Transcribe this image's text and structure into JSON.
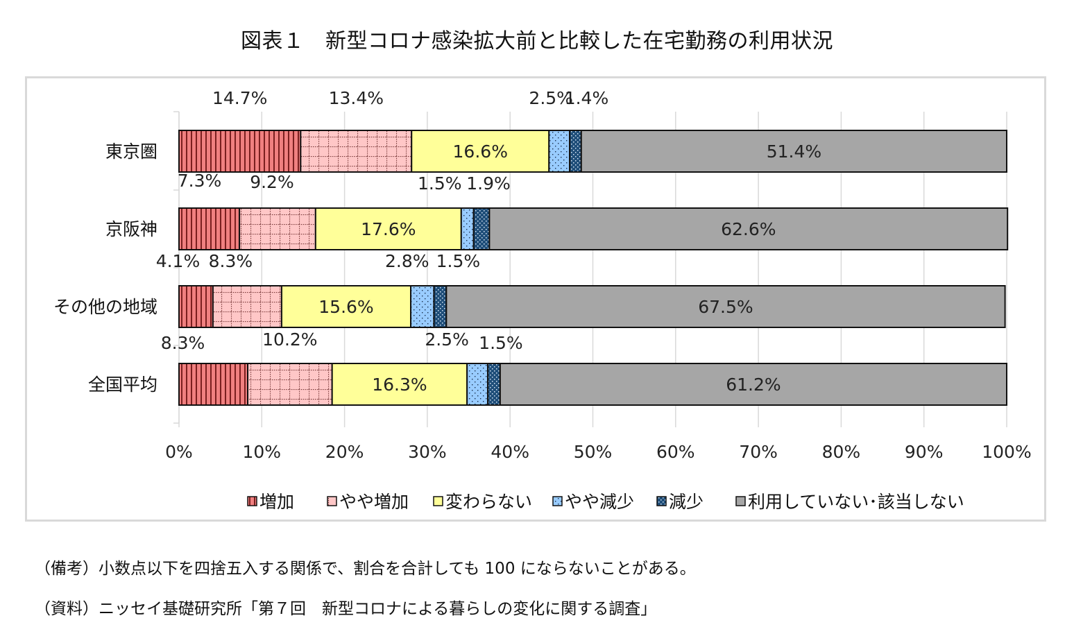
{
  "title": "図表１　新型コロナ感染拡大前と比較した在宅勤務の利用状況",
  "chart_data": {
    "type": "bar",
    "orientation": "horizontal",
    "stacked": true,
    "percent": true,
    "categories": [
      "東京圏",
      "京阪神",
      "その他の地域",
      "全国平均"
    ],
    "series": [
      {
        "name": "増加",
        "values": [
          14.7,
          7.3,
          4.1,
          8.3
        ],
        "labels": [
          "14.7%",
          "7.3%",
          "4.1%",
          "8.3%"
        ],
        "color": "#f08080"
      },
      {
        "name": "やや増加",
        "values": [
          13.4,
          9.2,
          8.3,
          10.2
        ],
        "labels": [
          "13.4%",
          "9.2%",
          "8.3%",
          "10.2%"
        ],
        "color": "#ffc7c7"
      },
      {
        "name": "変わらない",
        "values": [
          16.6,
          17.6,
          15.6,
          16.3
        ],
        "labels": [
          "16.6%",
          "17.6%",
          "15.6%",
          "16.3%"
        ],
        "color": "#ffff99"
      },
      {
        "name": "やや減少",
        "values": [
          2.5,
          1.5,
          2.8,
          2.5
        ],
        "labels": [
          "2.5%",
          "1.5%",
          "2.8%",
          "2.5%"
        ],
        "color": "#99ccff"
      },
      {
        "name": "減少",
        "values": [
          1.4,
          1.9,
          1.5,
          1.5
        ],
        "labels": [
          "1.4%",
          "1.9%",
          "1.5%",
          "1.5%"
        ],
        "color": "#1f4e79"
      },
      {
        "name": "利用していない･該当しない",
        "values": [
          51.4,
          62.6,
          67.5,
          61.2
        ],
        "labels": [
          "51.4%",
          "62.6%",
          "67.5%",
          "61.2%"
        ],
        "color": "#a6a6a6"
      }
    ],
    "xticks": [
      "0%",
      "10%",
      "20%",
      "30%",
      "40%",
      "50%",
      "60%",
      "70%",
      "80%",
      "90%",
      "100%"
    ],
    "xlim": [
      0,
      100
    ],
    "grid": true,
    "legend": "bottom"
  },
  "notes": {
    "remark": "（備考）小数点以下を四捨五入する関係で、割合を合計しても 100 にならないことがある。",
    "source": "（資料）ニッセイ基礎研究所「第７回　新型コロナによる暮らしの変化に関する調査」"
  }
}
